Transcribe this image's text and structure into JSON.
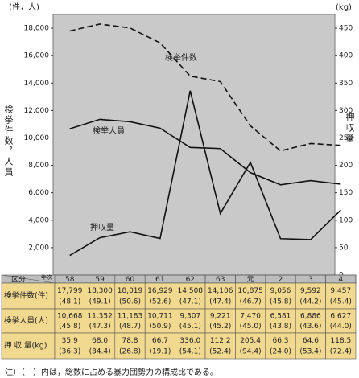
{
  "chart_data": {
    "type": "line",
    "categories": [
      "58",
      "59",
      "60",
      "61",
      "62",
      "63",
      "元",
      "2",
      "3",
      "4"
    ],
    "y_unit": "(件，人)",
    "y2_unit": "(kg)",
    "y_title": "検挙件数，人員",
    "y2_title": "押収量",
    "ylim": [
      0,
      19000
    ],
    "yticks": [
      {
        "value": 2000,
        "label": "2,000"
      },
      {
        "value": 4000,
        "label": "4,000"
      },
      {
        "value": 6000,
        "label": "6,000"
      },
      {
        "value": 8000,
        "label": "8,000"
      },
      {
        "value": 10000,
        "label": "10,000"
      },
      {
        "value": 12000,
        "label": "12,000"
      },
      {
        "value": 14000,
        "label": "14,000"
      },
      {
        "value": 16000,
        "label": "16,000"
      },
      {
        "value": 18000,
        "label": "18,000"
      }
    ],
    "y2lim": [
      0,
      475
    ],
    "y2ticks": [
      0,
      50,
      100,
      150,
      200,
      250,
      300,
      350,
      400,
      450
    ],
    "background": "#c9c9c9",
    "series": [
      {
        "name": "検挙件数",
        "color": "#111111",
        "line_style": "dashed",
        "values": [
          17799,
          18300,
          18019,
          16929,
          14508,
          14106,
          10875,
          9056,
          9592,
          9457
        ]
      },
      {
        "name": "検挙人員",
        "color": "#111111",
        "line_style": "solid",
        "values": [
          10668,
          11352,
          11183,
          10711,
          9307,
          9221,
          7470,
          6581,
          6886,
          6627
        ]
      },
      {
        "name": "押収量",
        "color": "#111111",
        "line_style": "solid",
        "axis": "y2",
        "values": [
          35.9,
          68.0,
          78.8,
          66.7,
          336.0,
          112.2,
          205.4,
          66.3,
          64.6,
          118.5
        ]
      }
    ]
  },
  "table": {
    "header": [
      "区分",
      "年次"
    ],
    "rows": [
      {
        "label": "検挙件数(件)",
        "cells": [
          [
            "17,799",
            "(48.1)"
          ],
          [
            "18,300",
            "(49.1)"
          ],
          [
            "18,019",
            "(50.6)"
          ],
          [
            "16,929",
            "(52.6)"
          ],
          [
            "14,508",
            "(47.1)"
          ],
          [
            "14,106",
            "(47.4)"
          ],
          [
            "10,875",
            "(46.7)"
          ],
          [
            "9,056",
            "(45.8)"
          ],
          [
            "9,592",
            "(44.2)"
          ],
          [
            "9,457",
            "(45.4)"
          ]
        ]
      },
      {
        "label": "検挙人員(人)",
        "cells": [
          [
            "10,668",
            "(45.8)"
          ],
          [
            "11,352",
            "(47.3)"
          ],
          [
            "11,183",
            "(48.7)"
          ],
          [
            "10,711",
            "(50.9)"
          ],
          [
            "9,307",
            "(45.1)"
          ],
          [
            "9,221",
            "(45.2)"
          ],
          [
            "7,470",
            "(45.0)"
          ],
          [
            "6,581",
            "(43.8)"
          ],
          [
            "6,886",
            "(43.6)"
          ],
          [
            "6,627",
            "(44.0)"
          ]
        ]
      },
      {
        "label": "押 収 量(kg)",
        "cells": [
          [
            "35.9",
            "(36.3)"
          ],
          [
            "68.0",
            "(34.4)"
          ],
          [
            "78.8",
            "(26.8)"
          ],
          [
            "66.7",
            "(19.1)"
          ],
          [
            "336.0",
            "(54.1)"
          ],
          [
            "112.2",
            "(52.4)"
          ],
          [
            "205.4",
            "(94.4)"
          ],
          [
            "66.3",
            "(24.0)"
          ],
          [
            "64.6",
            "(53.4)"
          ],
          [
            "118.5",
            "(72.4)"
          ]
        ]
      }
    ]
  },
  "note": "注）（　）内は，総数に占める暴力団勢力の構成比である。"
}
